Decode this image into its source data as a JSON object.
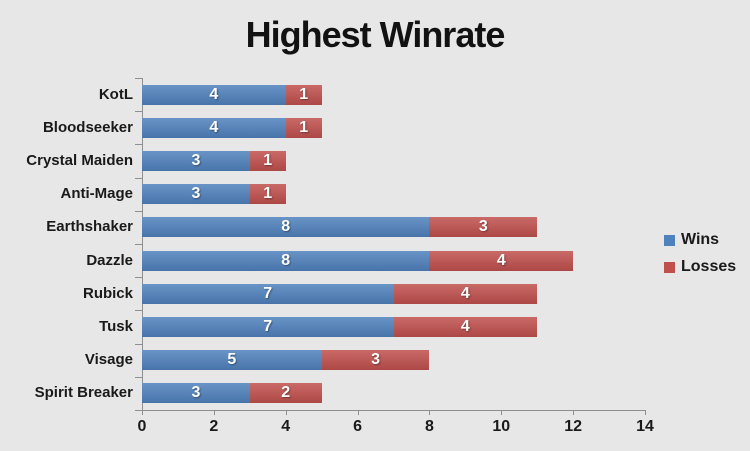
{
  "title": "Highest Winrate",
  "colors": {
    "background": "#E7E7E7",
    "axis": "#8F8F8F",
    "wins": "#4F81BD",
    "losses": "#C0504D",
    "data_label": "#FFFFFF",
    "text": "#1A1A1A"
  },
  "legend": {
    "position": "right",
    "items": [
      {
        "label": "Wins",
        "color": "#4F81BD"
      },
      {
        "label": "Losses",
        "color": "#C0504D"
      }
    ]
  },
  "chart_data": {
    "type": "bar",
    "orientation": "horizontal",
    "stacked": true,
    "title": "Highest Winrate",
    "categories": [
      "KotL",
      "Bloodseeker",
      "Crystal Maiden",
      "Anti-Mage",
      "Earthshaker",
      "Dazzle",
      "Rubick",
      "Tusk",
      "Visage",
      "Spirit Breaker"
    ],
    "series": [
      {
        "name": "Wins",
        "color": "#4F81BD",
        "values": [
          4,
          4,
          3,
          3,
          8,
          8,
          7,
          7,
          5,
          3
        ]
      },
      {
        "name": "Losses",
        "color": "#C0504D",
        "values": [
          1,
          1,
          1,
          1,
          3,
          4,
          4,
          4,
          3,
          2
        ]
      }
    ],
    "totals": [
      5,
      5,
      4,
      4,
      11,
      12,
      11,
      11,
      8,
      5
    ],
    "xlabel": "",
    "ylabel": "",
    "xlim": [
      0,
      14
    ],
    "x_ticks": [
      0,
      2,
      4,
      6,
      8,
      10,
      12,
      14
    ],
    "data_labels": true,
    "grid": false,
    "legend_position": "right"
  }
}
